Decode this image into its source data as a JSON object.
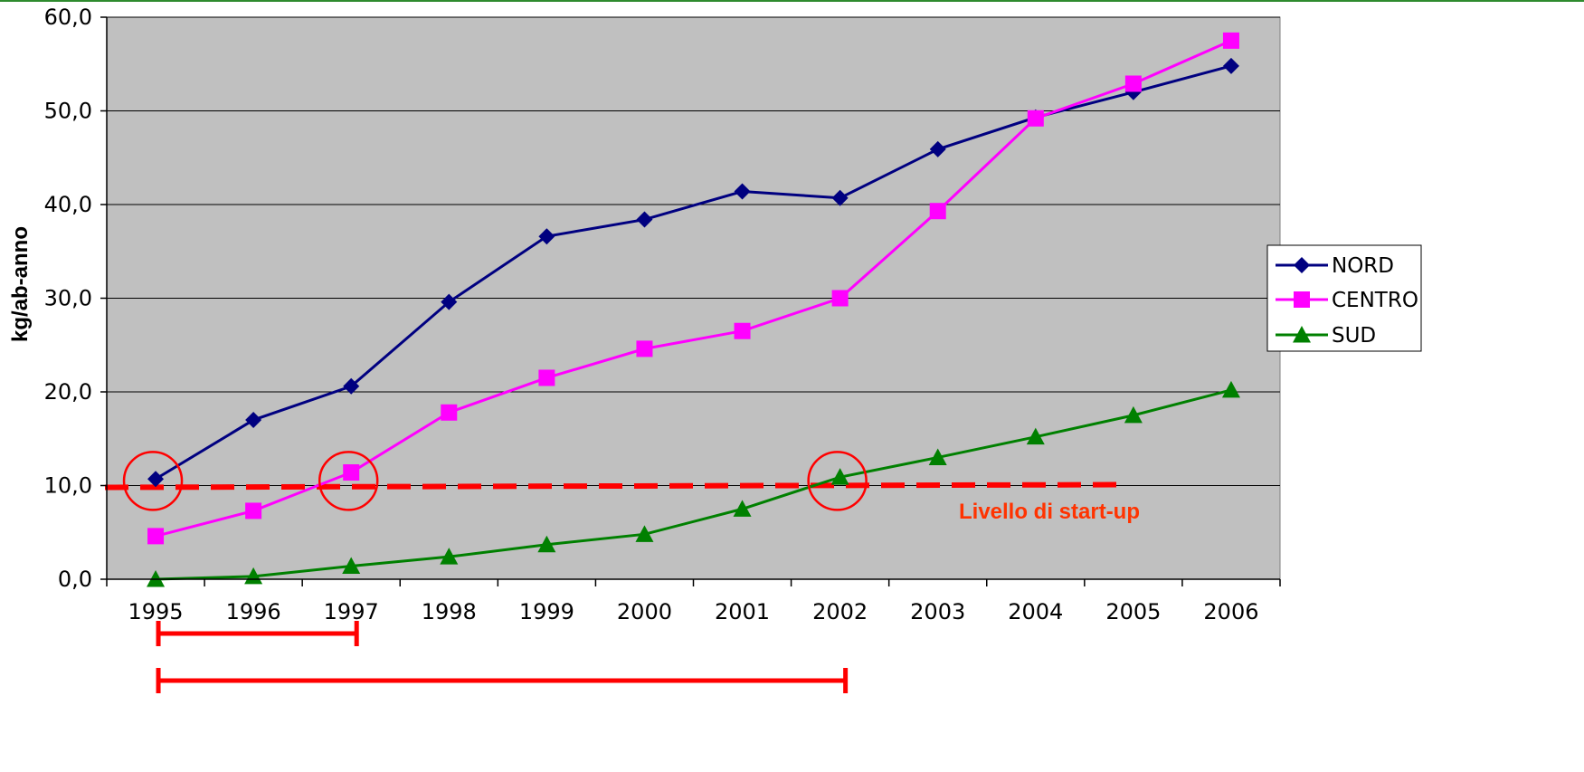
{
  "chart_data": {
    "type": "line",
    "ylabel": "kg/ab-anno",
    "ylim": [
      0,
      60
    ],
    "yticks": [
      "0,0",
      "10,0",
      "20,0",
      "30,0",
      "40,0",
      "50,0",
      "60,0"
    ],
    "ytick_values": [
      0,
      10,
      20,
      30,
      40,
      50,
      60
    ],
    "categories": [
      "1995",
      "1996",
      "1997",
      "1998",
      "1999",
      "2000",
      "2001",
      "2002",
      "2003",
      "2004",
      "2005",
      "2006"
    ],
    "grid": "horizontal",
    "plot_background": "#c0c0c0",
    "legend_position": "right",
    "series": [
      {
        "name": "NORD",
        "color": "#000080",
        "marker": "diamond",
        "values": [
          10.7,
          17.0,
          20.6,
          29.6,
          36.6,
          38.4,
          41.4,
          40.7,
          45.9,
          49.3,
          52.0,
          54.8
        ]
      },
      {
        "name": "CENTRO",
        "color": "#ff00ff",
        "marker": "square",
        "values": [
          4.6,
          7.3,
          11.4,
          17.8,
          21.5,
          24.6,
          26.5,
          30.0,
          39.3,
          49.2,
          52.9,
          57.5
        ]
      },
      {
        "name": "SUD",
        "color": "#008000",
        "marker": "triangle",
        "values": [
          0.0,
          0.3,
          1.4,
          2.4,
          3.7,
          4.8,
          7.5,
          10.9,
          13.0,
          15.2,
          17.5,
          20.2
        ]
      }
    ],
    "annotations": {
      "threshold": {
        "value": 10.0,
        "from": "1995",
        "to": "2005",
        "color": "#ff0000",
        "label": "Livello di start-up",
        "label_color": "#ff3300"
      },
      "circles": [
        {
          "x": "1995",
          "y": 10.5
        },
        {
          "x": "1997",
          "y": 10.5
        },
        {
          "x": "2002",
          "y": 10.5
        }
      ],
      "ranges": [
        {
          "from": "1995",
          "to": "1997"
        },
        {
          "from": "1995",
          "to": "2002"
        }
      ],
      "range_color": "#ff0000"
    }
  }
}
